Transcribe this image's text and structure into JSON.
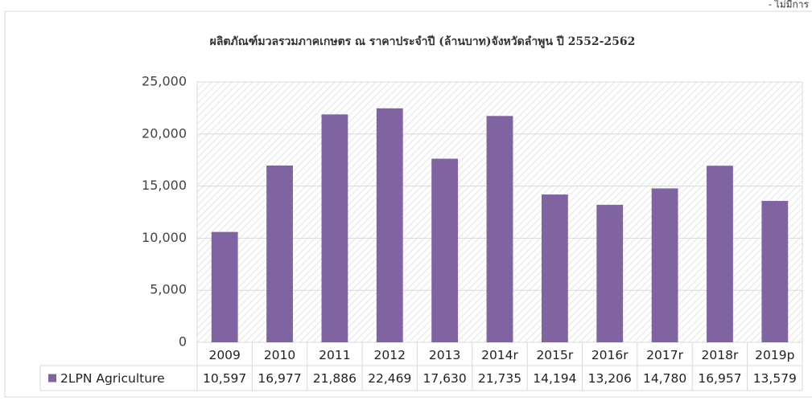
{
  "chart_data": {
    "type": "bar",
    "title": "ผลิตภัณฑ์มวลรวมภาคเกษตร ณ ราคาประจำปี (ล้านบาท)จังหวัดลำพูน ปี 2552-2562",
    "annotation": "- ไม่มีการ",
    "categories": [
      "2009",
      "2010",
      "2011",
      "2012",
      "2013",
      "2014r",
      "2015r",
      "2016r",
      "2017r",
      "2018r",
      "2019p"
    ],
    "series": [
      {
        "name": "2LPN Agriculture",
        "color": "#8064a2",
        "values": [
          10597,
          16977,
          21886,
          22469,
          17630,
          21735,
          14194,
          13206,
          14780,
          16957,
          13579
        ],
        "value_labels": [
          "10,597",
          "16,977",
          "21,886",
          "22,469",
          "17,630",
          "21,735",
          "14,194",
          "13,206",
          "14,780",
          "16,957",
          "13,579"
        ]
      }
    ],
    "ylim": [
      0,
      25000
    ],
    "yticks": [
      0,
      {
        "value": 5000,
        "label": "5,000"
      },
      {
        "value": 10000,
        "label": "10,000"
      },
      {
        "value": 15000,
        "label": "15,000"
      },
      {
        "value": 20000,
        "label": "20,000"
      },
      {
        "value": 25000,
        "label": "25,000"
      }
    ],
    "grid": true
  }
}
